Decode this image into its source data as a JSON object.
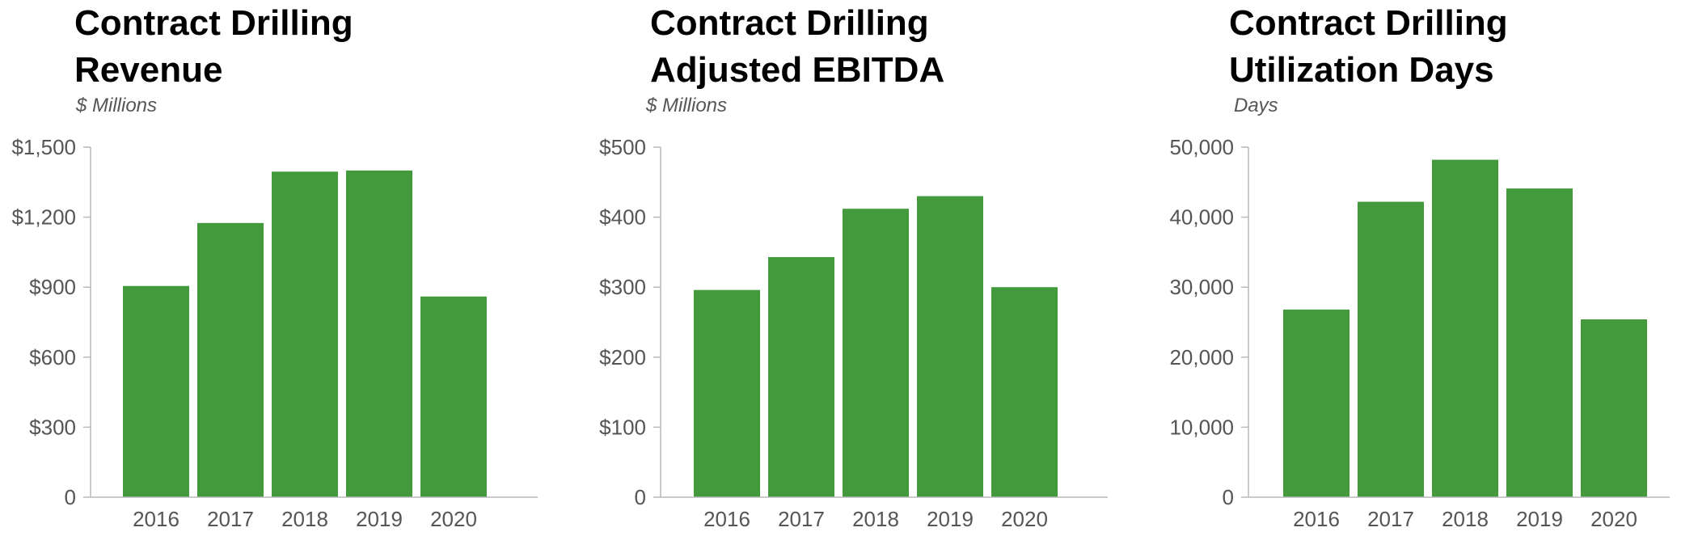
{
  "bar_color": "#439a3c",
  "axis_color": "#b8b8b8",
  "chart_data": [
    {
      "type": "bar",
      "title_lines": [
        "Contract Drilling",
        "Revenue"
      ],
      "subtitle": "$ Millions",
      "categories": [
        "2016",
        "2017",
        "2018",
        "2019",
        "2020"
      ],
      "values": [
        905,
        1175,
        1395,
        1400,
        860
      ],
      "ylim": [
        0,
        1500
      ],
      "yticks": [
        0,
        300,
        600,
        900,
        1200,
        1500
      ],
      "ytick_labels": [
        "0",
        "$300",
        "$600",
        "$900",
        "$1,200",
        "$1,500"
      ],
      "grid": false
    },
    {
      "type": "bar",
      "title_lines": [
        "Contract Drilling",
        "Adjusted EBITDA"
      ],
      "subtitle": "$ Millions",
      "categories": [
        "2016",
        "2017",
        "2018",
        "2019",
        "2020"
      ],
      "values": [
        296,
        343,
        412,
        430,
        300
      ],
      "ylim": [
        0,
        500
      ],
      "yticks": [
        0,
        100,
        200,
        300,
        400,
        500
      ],
      "ytick_labels": [
        "0",
        "$100",
        "$200",
        "$300",
        "$400",
        "$500"
      ],
      "grid": false
    },
    {
      "type": "bar",
      "title_lines": [
        "Contract Drilling",
        "Utilization Days"
      ],
      "subtitle": "Days",
      "categories": [
        "2016",
        "2017",
        "2018",
        "2019",
        "2020"
      ],
      "values": [
        26800,
        42200,
        48200,
        44100,
        25400
      ],
      "ylim": [
        0,
        50000
      ],
      "yticks": [
        0,
        10000,
        20000,
        30000,
        40000,
        50000
      ],
      "ytick_labels": [
        "0",
        "10,000",
        "20,000",
        "30,000",
        "40,000",
        "50,000"
      ],
      "grid": false
    }
  ]
}
